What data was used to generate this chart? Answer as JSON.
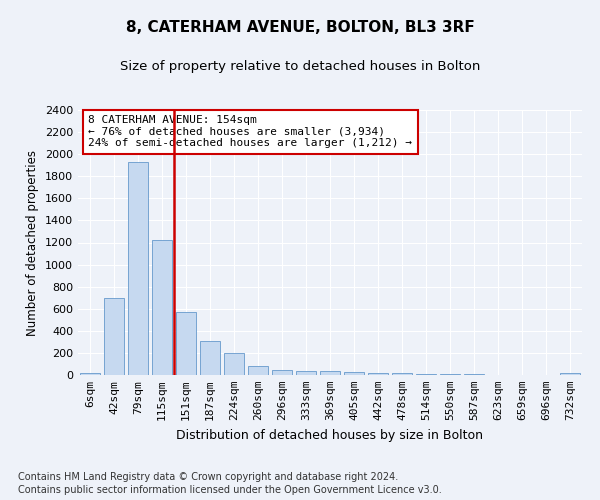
{
  "title1": "8, CATERHAM AVENUE, BOLTON, BL3 3RF",
  "title2": "Size of property relative to detached houses in Bolton",
  "xlabel": "Distribution of detached houses by size in Bolton",
  "ylabel": "Number of detached properties",
  "bin_labels": [
    "6sqm",
    "42sqm",
    "79sqm",
    "115sqm",
    "151sqm",
    "187sqm",
    "224sqm",
    "260sqm",
    "296sqm",
    "333sqm",
    "369sqm",
    "405sqm",
    "442sqm",
    "478sqm",
    "514sqm",
    "550sqm",
    "587sqm",
    "623sqm",
    "659sqm",
    "696sqm",
    "732sqm"
  ],
  "bar_values": [
    15,
    700,
    1930,
    1225,
    575,
    305,
    200,
    80,
    45,
    38,
    35,
    30,
    20,
    15,
    10,
    8,
    5,
    3,
    2,
    1,
    15
  ],
  "bar_color": "#c6d9f0",
  "bar_edgecolor": "#6699cc",
  "annotation_text": "8 CATERHAM AVENUE: 154sqm\n← 76% of detached houses are smaller (3,934)\n24% of semi-detached houses are larger (1,212) →",
  "annotation_box_color": "#ffffff",
  "annotation_box_edgecolor": "#cc0000",
  "vline_color": "#cc0000",
  "vline_x_index": 3.5,
  "ylim": [
    0,
    2400
  ],
  "yticks": [
    0,
    200,
    400,
    600,
    800,
    1000,
    1200,
    1400,
    1600,
    1800,
    2000,
    2200,
    2400
  ],
  "footer1": "Contains HM Land Registry data © Crown copyright and database right 2024.",
  "footer2": "Contains public sector information licensed under the Open Government Licence v3.0.",
  "bg_color": "#eef2f9",
  "plot_bg_color": "#eef2f9",
  "title1_fontsize": 11,
  "title2_fontsize": 9.5,
  "xlabel_fontsize": 9,
  "ylabel_fontsize": 8.5,
  "tick_fontsize": 8,
  "footer_fontsize": 7,
  "annot_fontsize": 8
}
